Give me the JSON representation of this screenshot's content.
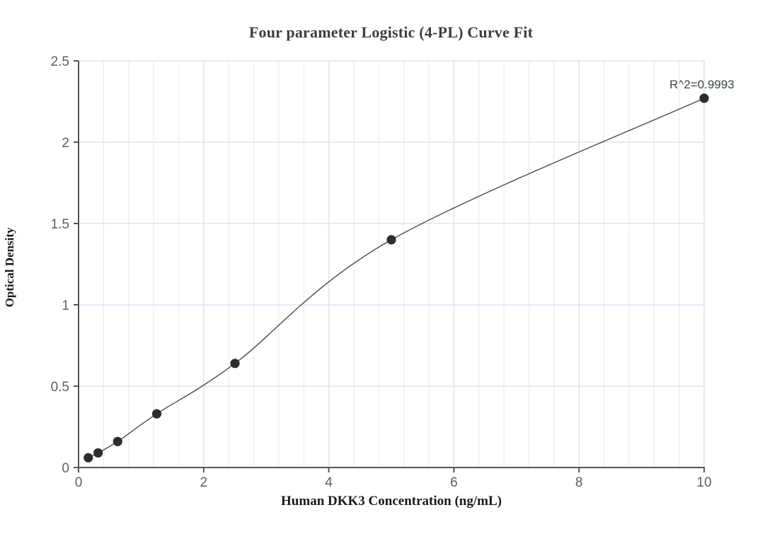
{
  "chart_data": {
    "type": "scatter",
    "title": "Four parameter Logistic (4-PL) Curve Fit",
    "xlabel": "Human DKK3 Concentration (ng/mL)",
    "ylabel": "Optical Density",
    "annotation": "R^2=0.9993",
    "points": [
      {
        "x": 0.156,
        "y": 0.06
      },
      {
        "x": 0.3125,
        "y": 0.09
      },
      {
        "x": 0.625,
        "y": 0.16
      },
      {
        "x": 1.25,
        "y": 0.33
      },
      {
        "x": 2.5,
        "y": 0.64
      },
      {
        "x": 5,
        "y": 1.4
      },
      {
        "x": 10,
        "y": 2.27
      }
    ],
    "curve": "4-PL fit line through all data points, drawn from first point (0.156, 0.06) to last point (10, 2.27)",
    "xlim": [
      0,
      10
    ],
    "ylim": [
      0,
      2.5
    ],
    "x_ticks": [
      0,
      2,
      4,
      6,
      8,
      10
    ],
    "x_tick_labels": [
      "0",
      "2",
      "4",
      "6",
      "8",
      "10"
    ],
    "y_ticks": [
      0,
      0.5,
      1,
      1.5,
      2,
      2.5
    ],
    "y_tick_labels": [
      "0",
      "0.5",
      "1",
      "1.5",
      "2",
      "2.5"
    ],
    "x_minor_step": 0.4,
    "grid": true,
    "legend": "none",
    "colors": {
      "background": "#ffffff",
      "grid_minor": "#e9ecf7",
      "grid_major": "#dee3f2",
      "axis": "#54565c",
      "tick_text": "#5b5f66",
      "curve": "#4b4b4b",
      "point": "#2b2d2f",
      "title_text": "#3e3e3e",
      "annotation_text": "#3e444d"
    }
  }
}
